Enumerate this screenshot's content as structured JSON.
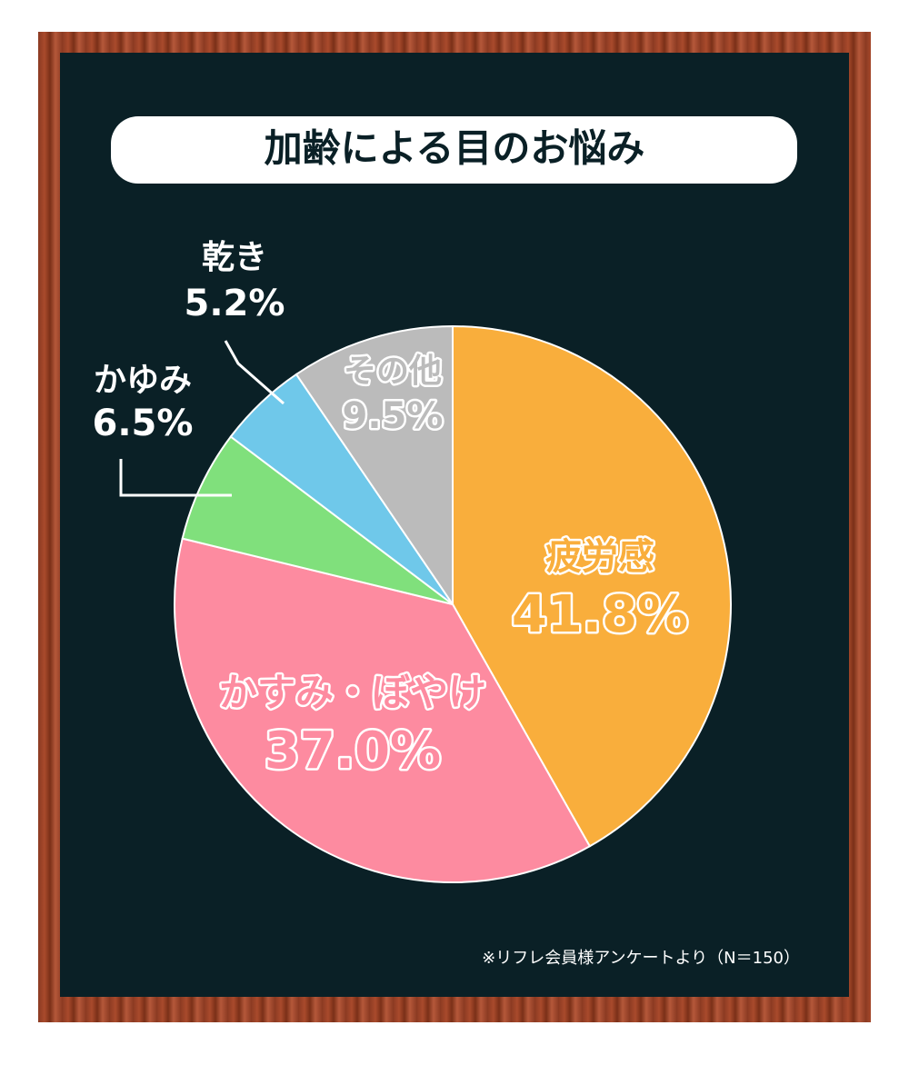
{
  "chart_data": {
    "type": "pie",
    "title": "加齢による目のお悩み",
    "categories": [
      "疲労感",
      "かすみ・ぼやけ",
      "かゆみ",
      "乾き",
      "その他"
    ],
    "values": [
      41.8,
      37.0,
      6.5,
      5.2,
      9.5
    ],
    "value_labels": [
      "41.8%",
      "37.0%",
      "6.5%",
      "5.2%",
      "9.5%"
    ],
    "colors": [
      "#f9ae3c",
      "#fd8ba0",
      "#80e07c",
      "#6fc8ea",
      "#bbbbbb"
    ],
    "note": "※リフレ会員様アンケートより（N＝150）"
  }
}
